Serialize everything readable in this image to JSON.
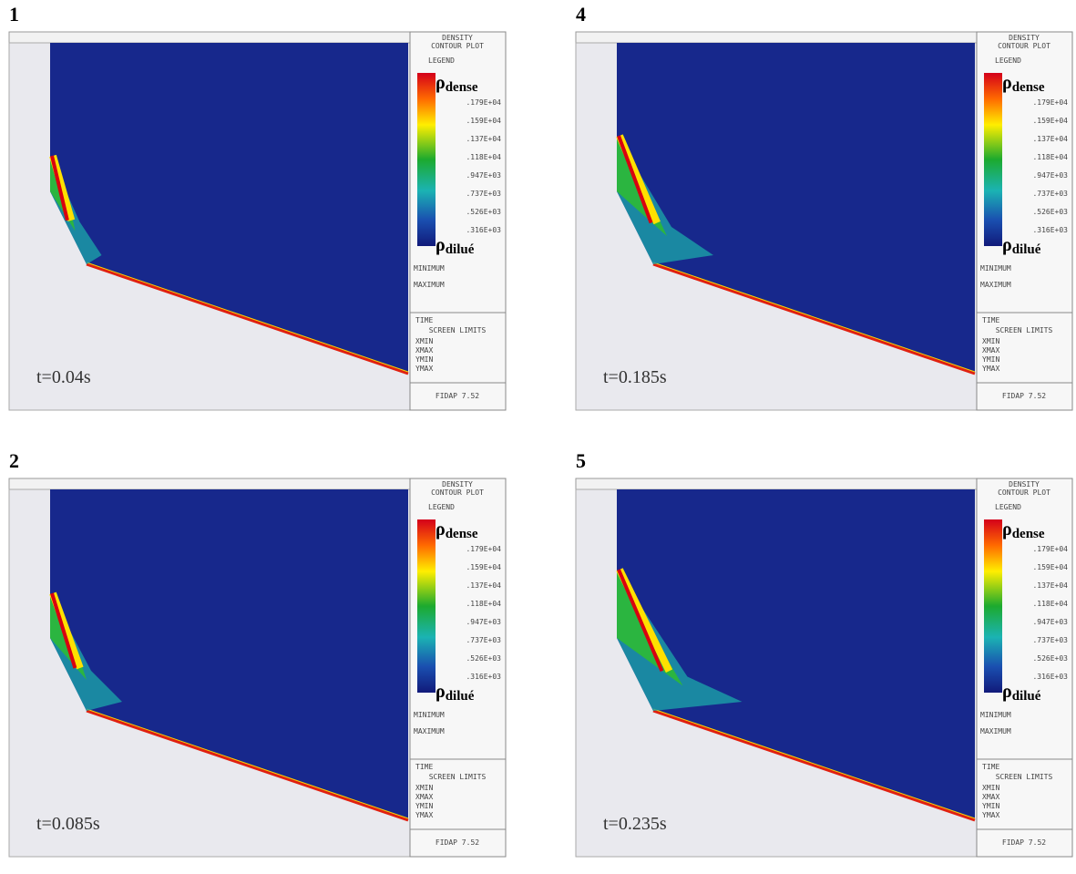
{
  "panels": [
    {
      "number": "1",
      "time": "t=0.04s"
    },
    {
      "number": "4",
      "time": "t=0.185s"
    },
    {
      "number": "2",
      "time": "t=0.085s"
    },
    {
      "number": "5",
      "time": "t=0.235s"
    }
  ],
  "sidebar": {
    "title_line1": "DENSITY",
    "title_line2": "CONTOUR PLOT",
    "legend": "LEGEND",
    "rho": "ρ",
    "dense": "dense",
    "dilute": "dilué",
    "levels": [
      ".179E+04",
      ".159E+04",
      ".137E+04",
      ".118E+04",
      ".947E+03",
      ".737E+03",
      ".526E+03",
      ".316E+03"
    ],
    "minimum": "MINIMUM",
    "maximum": "MAXIMUM",
    "time": "TIME",
    "screen_limits": "SCREEN LIMITS",
    "limits": [
      "XMIN",
      "XMAX",
      "YMIN",
      "YMAX"
    ],
    "software": "FIDAP 7.52"
  }
}
